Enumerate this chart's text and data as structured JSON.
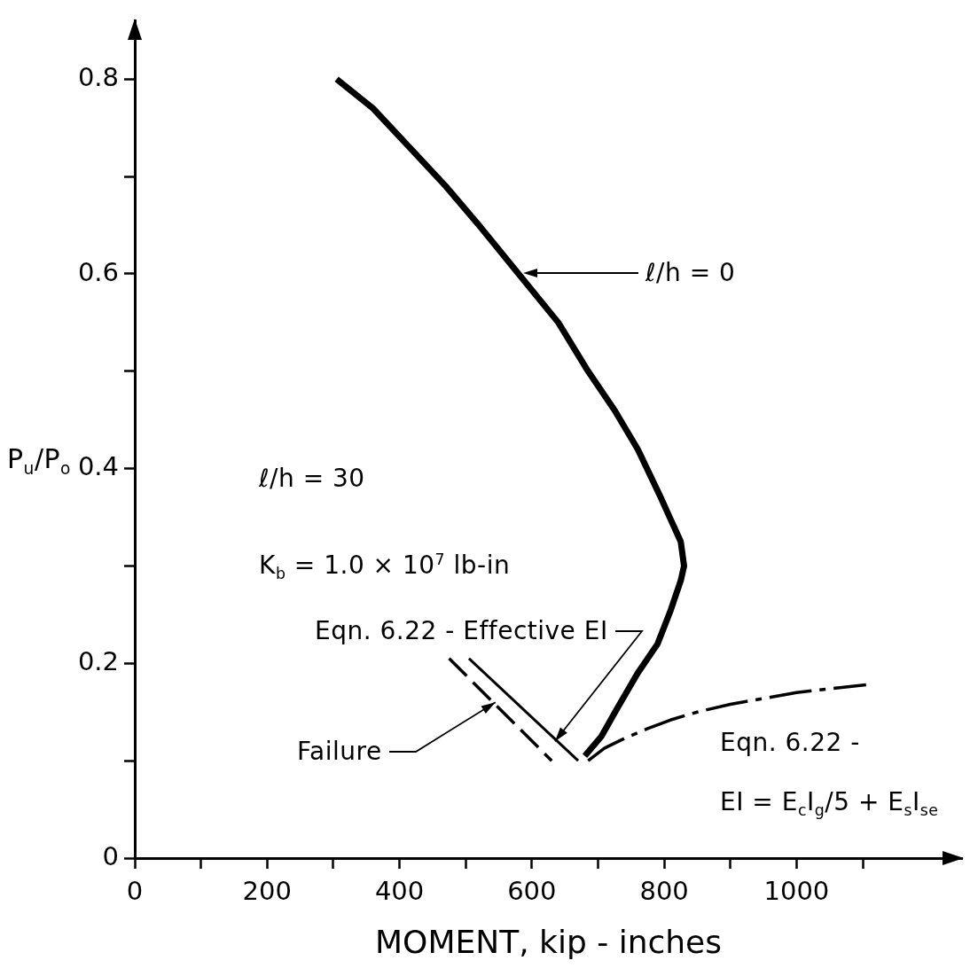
{
  "chart_data": {
    "type": "line",
    "xlabel": "MOMENT, kip - inches",
    "ylabel": "P$_{u}$/P$_{o}$",
    "xlim": [
      0,
      1250
    ],
    "ylim": [
      0,
      0.86
    ],
    "xticks": [
      0,
      {
        "value": 100,
        "label": null
      },
      200,
      {
        "value": 300,
        "label": null
      },
      400,
      {
        "value": 500,
        "label": null
      },
      600,
      {
        "value": 700,
        "label": null
      },
      800,
      {
        "value": 900,
        "label": null
      },
      1000,
      {
        "value": 1100,
        "label": null
      }
    ],
    "yticks": [
      0,
      {
        "value": 0.1,
        "label": null
      },
      0.2,
      {
        "value": 0.3,
        "label": null
      },
      0.4,
      {
        "value": 0.5,
        "label": null
      },
      0.6,
      {
        "value": 0.7,
        "label": null
      },
      0.8
    ],
    "grid": false,
    "legend": false,
    "series": [
      {
        "color": "#000000",
        "line_style": "solid",
        "x": [
          305,
          360,
          415,
          470,
          520,
          580,
          640,
          685,
          725,
          760,
          795,
          805,
          825,
          830,
          825,
          810,
          790,
          760,
          730,
          705,
          680
        ],
        "values": [
          0.8,
          0.77,
          0.73,
          0.69,
          0.65,
          0.6,
          0.55,
          0.5,
          0.46,
          0.42,
          0.37,
          0.355,
          0.325,
          0.3,
          0.285,
          0.255,
          0.22,
          0.19,
          0.155,
          0.125,
          0.105
        ]
      },
      {
        "color": "#000000",
        "line_style": "solid",
        "x": [
          505,
          670
        ],
        "values": [
          0.205,
          0.1
        ]
      },
      {
        "color": "#000000",
        "line_style": "dashed",
        "x": [
          475,
          630
        ],
        "values": [
          0.205,
          0.1
        ]
      },
      {
        "color": "#000000",
        "line_style": "dashdot",
        "x": [
          685,
          710,
          740,
          775,
          810,
          850,
          900,
          950,
          1000,
          1050,
          1105
        ],
        "values": [
          0.1,
          0.113,
          0.123,
          0.133,
          0.142,
          0.15,
          0.158,
          0.164,
          0.17,
          0.174,
          0.178
        ]
      }
    ],
    "annotations": [
      "ℓ/h = 0",
      "ℓ/h = 30",
      "K$_{b}$ = 1.0 × 10$^{7}$ lb-in",
      {
        "text": "Eqn. 6.22 - Effective EI",
        "x": 635,
        "y": 0.12
      },
      {
        "text": "Failure",
        "x": 545,
        "y": 0.16
      },
      "Eqn. 6.22 -",
      "EI = E$_{c}$I$_{g}$/5 + E$_{s}$I$_{se}$"
    ]
  }
}
